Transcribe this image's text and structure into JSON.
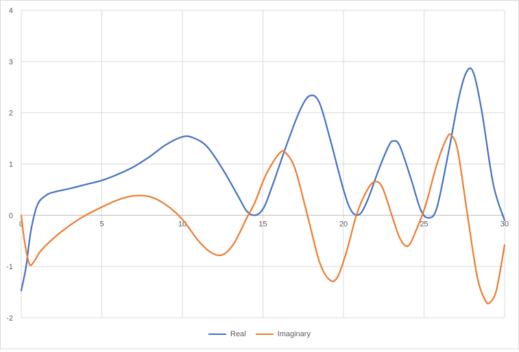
{
  "chart_data": {
    "type": "line",
    "title": "",
    "xlabel": "",
    "ylabel": "",
    "xlim": [
      0,
      30
    ],
    "ylim": [
      -2,
      4
    ],
    "x_ticks": [
      "0",
      "5",
      "10",
      "15",
      "20",
      "25",
      "30"
    ],
    "y_ticks": [
      "-2",
      "-1",
      "0",
      "1",
      "2",
      "3",
      "4"
    ],
    "grid": true,
    "legend_position": "bottom",
    "series": [
      {
        "name": "Real",
        "color": "#4472c4",
        "points": [
          [
            0,
            -1.47
          ],
          [
            0.3,
            -1.0
          ],
          [
            0.6,
            -0.3
          ],
          [
            1.0,
            0.2
          ],
          [
            1.5,
            0.38
          ],
          [
            2.0,
            0.45
          ],
          [
            3.0,
            0.52
          ],
          [
            4.0,
            0.6
          ],
          [
            5.0,
            0.68
          ],
          [
            6.0,
            0.8
          ],
          [
            7.0,
            0.95
          ],
          [
            8.0,
            1.15
          ],
          [
            9.0,
            1.38
          ],
          [
            10.0,
            1.53
          ],
          [
            10.6,
            1.52
          ],
          [
            11.5,
            1.35
          ],
          [
            12.5,
            0.9
          ],
          [
            13.5,
            0.35
          ],
          [
            14.0,
            0.08
          ],
          [
            14.5,
            0.0
          ],
          [
            15.0,
            0.12
          ],
          [
            15.5,
            0.5
          ],
          [
            16.5,
            1.4
          ],
          [
            17.3,
            2.05
          ],
          [
            17.9,
            2.33
          ],
          [
            18.5,
            2.2
          ],
          [
            19.2,
            1.45
          ],
          [
            20.0,
            0.5
          ],
          [
            20.5,
            0.08
          ],
          [
            21.0,
            0.02
          ],
          [
            21.5,
            0.3
          ],
          [
            22.2,
            0.9
          ],
          [
            22.8,
            1.35
          ],
          [
            23.1,
            1.45
          ],
          [
            23.5,
            1.35
          ],
          [
            24.2,
            0.7
          ],
          [
            24.8,
            0.1
          ],
          [
            25.3,
            -0.05
          ],
          [
            25.8,
            0.15
          ],
          [
            26.5,
            1.2
          ],
          [
            27.2,
            2.35
          ],
          [
            27.7,
            2.83
          ],
          [
            28.1,
            2.75
          ],
          [
            28.6,
            2.0
          ],
          [
            29.3,
            0.6
          ],
          [
            30.0,
            -0.1
          ]
        ]
      },
      {
        "name": "Imaginary",
        "color": "#ed7d31",
        "points": [
          [
            0,
            0.0
          ],
          [
            0.2,
            -0.5
          ],
          [
            0.5,
            -0.95
          ],
          [
            0.8,
            -0.9
          ],
          [
            1.2,
            -0.7
          ],
          [
            2.0,
            -0.45
          ],
          [
            3.0,
            -0.2
          ],
          [
            4.0,
            0.0
          ],
          [
            5.0,
            0.16
          ],
          [
            6.0,
            0.3
          ],
          [
            7.0,
            0.38
          ],
          [
            8.0,
            0.36
          ],
          [
            9.0,
            0.2
          ],
          [
            10.0,
            -0.08
          ],
          [
            11.0,
            -0.5
          ],
          [
            11.8,
            -0.73
          ],
          [
            12.5,
            -0.77
          ],
          [
            13.2,
            -0.55
          ],
          [
            14.0,
            -0.05
          ],
          [
            14.5,
            0.25
          ],
          [
            15.2,
            0.8
          ],
          [
            16.0,
            1.2
          ],
          [
            16.4,
            1.22
          ],
          [
            17.0,
            0.9
          ],
          [
            17.8,
            -0.05
          ],
          [
            18.5,
            -0.9
          ],
          [
            19.1,
            -1.25
          ],
          [
            19.6,
            -1.22
          ],
          [
            20.2,
            -0.7
          ],
          [
            20.8,
            0.0
          ],
          [
            21.4,
            0.45
          ],
          [
            21.9,
            0.65
          ],
          [
            22.4,
            0.55
          ],
          [
            23.0,
            0.0
          ],
          [
            23.5,
            -0.45
          ],
          [
            24.0,
            -0.6
          ],
          [
            24.5,
            -0.3
          ],
          [
            25.1,
            0.2
          ],
          [
            25.8,
            1.0
          ],
          [
            26.4,
            1.5
          ],
          [
            26.7,
            1.56
          ],
          [
            27.1,
            1.25
          ],
          [
            27.7,
            0.0
          ],
          [
            28.3,
            -1.2
          ],
          [
            28.8,
            -1.66
          ],
          [
            29.1,
            -1.7
          ],
          [
            29.5,
            -1.45
          ],
          [
            30.0,
            -0.58
          ]
        ]
      }
    ]
  }
}
